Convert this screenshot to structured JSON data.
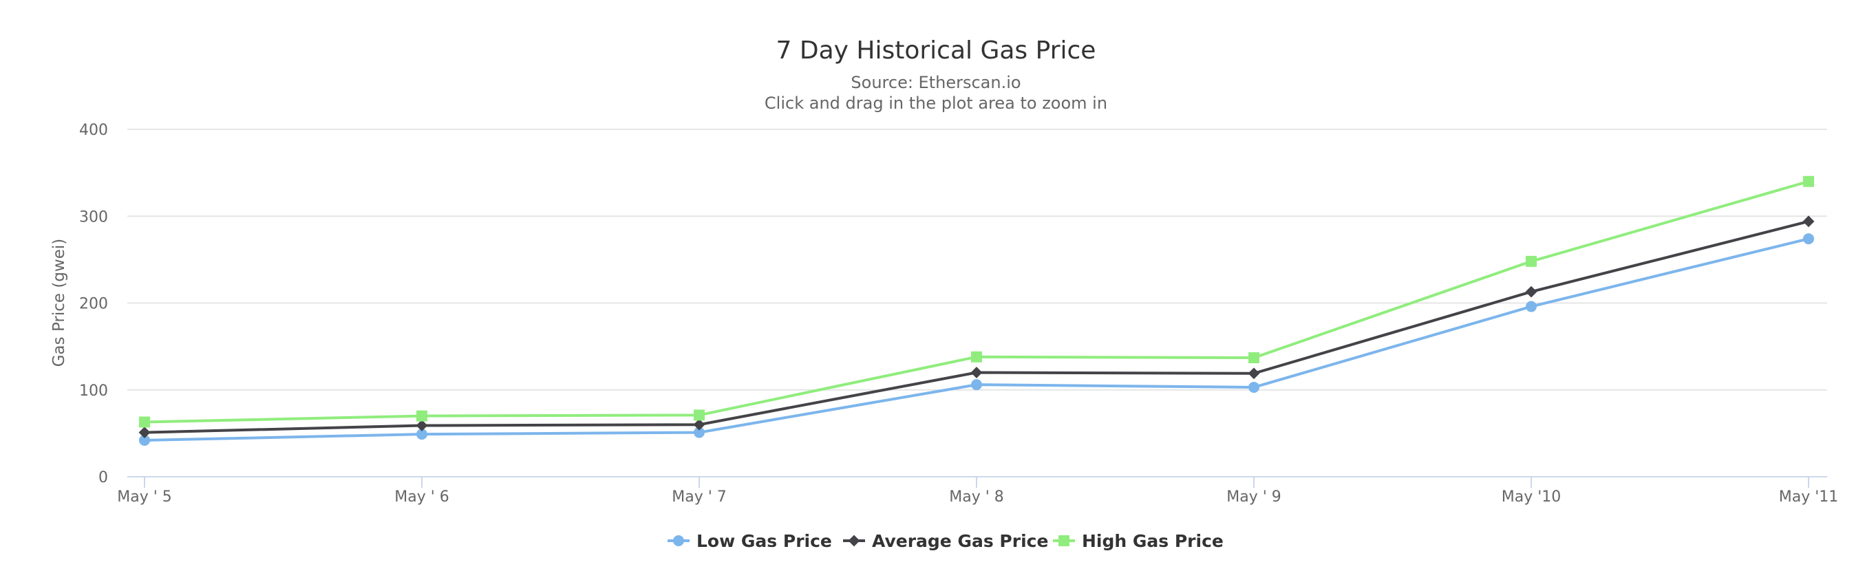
{
  "chart_data": {
    "type": "line",
    "title": "7 Day Historical Gas Price",
    "subtitle": "Source: Etherscan.io",
    "hint": "Click and drag in the plot area to zoom in",
    "xlabel": "",
    "ylabel": "Gas Price (gwei)",
    "categories": [
      "May ' 5",
      "May ' 6",
      "May ' 7",
      "May ' 8",
      "May ' 9",
      "May '10",
      "May '11"
    ],
    "yticks": [
      0,
      100,
      200,
      300,
      400
    ],
    "ylim": [
      0,
      400
    ],
    "grid": true,
    "legend_position": "bottom-center",
    "series": [
      {
        "name": "Low Gas Price",
        "values": [
          42,
          49,
          51,
          106,
          103,
          196,
          274
        ],
        "color": "#7cb5ec",
        "marker": "circle"
      },
      {
        "name": "Average Gas Price",
        "values": [
          51,
          59,
          60,
          120,
          119,
          213,
          294
        ],
        "color": "#434348",
        "marker": "diamond"
      },
      {
        "name": "High Gas Price",
        "values": [
          63,
          70,
          71,
          138,
          137,
          248,
          340
        ],
        "color": "#90ed7d",
        "marker": "square"
      }
    ]
  }
}
